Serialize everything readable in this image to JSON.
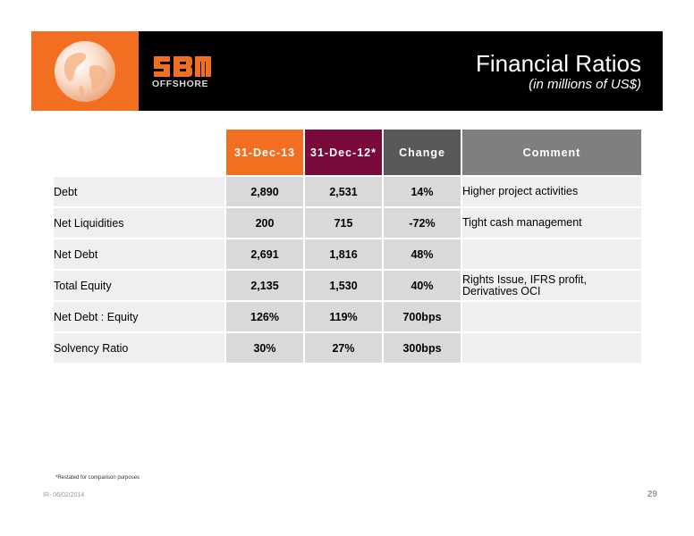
{
  "header": {
    "brand_name": "SBM",
    "brand_sub": "OFFSHORE",
    "title": "Financial Ratios",
    "subtitle": "(in millions of US$)"
  },
  "table": {
    "columns": [
      "31-Dec-13",
      "31-Dec-12*",
      "Change",
      "Comment"
    ],
    "rows": [
      {
        "label": "Debt",
        "v13": "2,890",
        "v12": "2,531",
        "change": "14%",
        "comment": "Higher project activities"
      },
      {
        "label": "Net Liquidities",
        "v13": "200",
        "v12": "715",
        "change": "-72%",
        "comment": "Tight cash management"
      },
      {
        "label": "Net Debt",
        "v13": "2,691",
        "v12": "1,816",
        "change": "48%",
        "comment": ""
      },
      {
        "label": "Total Equity",
        "v13": "2,135",
        "v12": "1,530",
        "change": "40%",
        "comment": "Rights Issue, IFRS profit, Derivatives OCI"
      },
      {
        "label": "Net Debt : Equity",
        "v13": "126%",
        "v12": "119%",
        "change": "700bps",
        "comment": ""
      },
      {
        "label": "Solvency Ratio",
        "v13": "30%",
        "v12": "27%",
        "change": "300bps",
        "comment": ""
      }
    ]
  },
  "footnote": "*Restated for comparison purposes",
  "footer": {
    "left": "IR- 06/02/2014",
    "page": "29"
  },
  "colors": {
    "brand_orange": "#f26f21",
    "maroon": "#7a0a3c",
    "change_header": "#595959",
    "comment_header": "#7f7f7f"
  }
}
